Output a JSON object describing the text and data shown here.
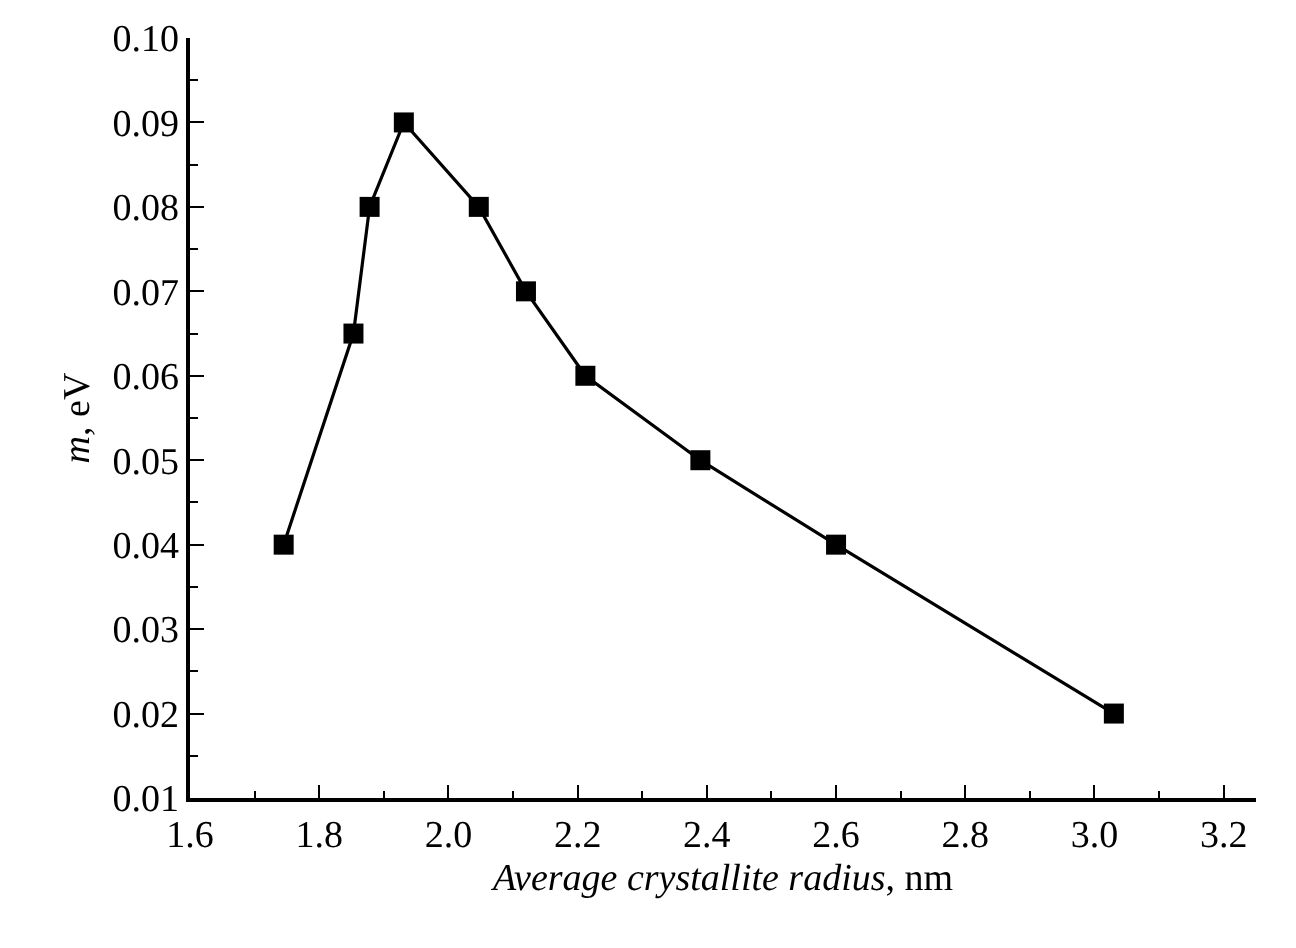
{
  "chart_data": {
    "type": "line",
    "xlabel": "Average crystallite radius, nm",
    "ylabel": "m, eV",
    "x": [
      1.745,
      1.853,
      1.878,
      1.931,
      2.047,
      2.12,
      2.212,
      2.39,
      2.6,
      3.03
    ],
    "series": [
      {
        "color": "#000000",
        "values": [
          0.04,
          0.065,
          0.08,
          0.09,
          0.08,
          0.07,
          0.06,
          0.05,
          0.04,
          0.02
        ]
      }
    ],
    "marker": "square",
    "line_style": "solid",
    "grid": false,
    "xlim": [
      1.6,
      3.25
    ],
    "xticks": [
      1.6,
      1.8,
      {
        "value": 2,
        "label": "2.0"
      },
      2.2,
      2.4,
      2.6,
      2.8,
      {
        "value": 3,
        "label": "3.0"
      },
      3.2
    ],
    "ylim": [
      0.01,
      0.1
    ],
    "yticks": [
      0.01,
      0.02,
      0.03,
      0.04,
      0.05,
      0.06,
      0.07,
      0.08,
      0.09,
      {
        "value": 0.1,
        "label": "0.10"
      }
    ]
  }
}
